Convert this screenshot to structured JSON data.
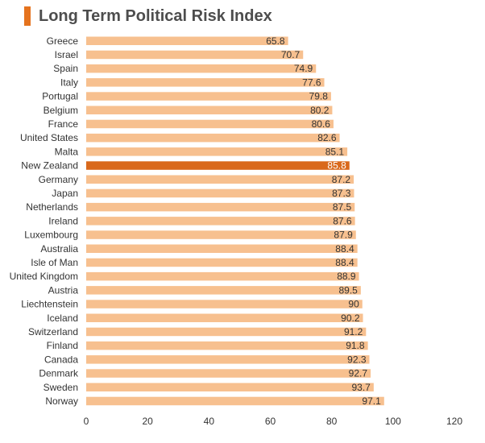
{
  "title": "Long Term Political Risk Index",
  "colors": {
    "bar": "#f7c08f",
    "highlight": "#d9691c",
    "title_marker": "#e5731e",
    "text": "#333333",
    "highlight_label": "#ffffff"
  },
  "chart_data": {
    "type": "bar",
    "orientation": "horizontal",
    "title": "Long Term Political Risk Index",
    "xlabel": "",
    "ylabel": "",
    "xlim": [
      0,
      120
    ],
    "xticks": [
      0,
      20,
      40,
      60,
      80,
      100,
      120
    ],
    "grid": false,
    "highlight": "New Zealand",
    "categories": [
      "Greece",
      "Israel",
      "Spain",
      "Italy",
      "Portugal",
      "Belgium",
      "France",
      "United States",
      "Malta",
      "New Zealand",
      "Germany",
      "Japan",
      "Netherlands",
      "Ireland",
      "Luxembourg",
      "Australia",
      "Isle of Man",
      "United Kingdom",
      "Austria",
      "Liechtenstein",
      "Iceland",
      "Switzerland",
      "Finland",
      "Canada",
      "Denmark",
      "Sweden",
      "Norway"
    ],
    "values": [
      65.8,
      70.7,
      74.9,
      77.6,
      79.8,
      80.2,
      80.6,
      82.6,
      85.1,
      85.8,
      87.2,
      87.3,
      87.5,
      87.6,
      87.9,
      88.4,
      88.4,
      88.9,
      89.5,
      90,
      90.2,
      91.2,
      91.8,
      92.3,
      92.7,
      93.7,
      97.1
    ],
    "value_labels": [
      "65.8",
      "70.7",
      "74.9",
      "77.6",
      "79.8",
      "80.2",
      "80.6",
      "82.6",
      "85.1",
      "85.8",
      "87.2",
      "87.3",
      "87.5",
      "87.6",
      "87.9",
      "88.4",
      "88.4",
      "88.9",
      "89.5",
      "90",
      "90.2",
      "91.2",
      "91.8",
      "92.3",
      "92.7",
      "93.7",
      "97.1"
    ]
  }
}
